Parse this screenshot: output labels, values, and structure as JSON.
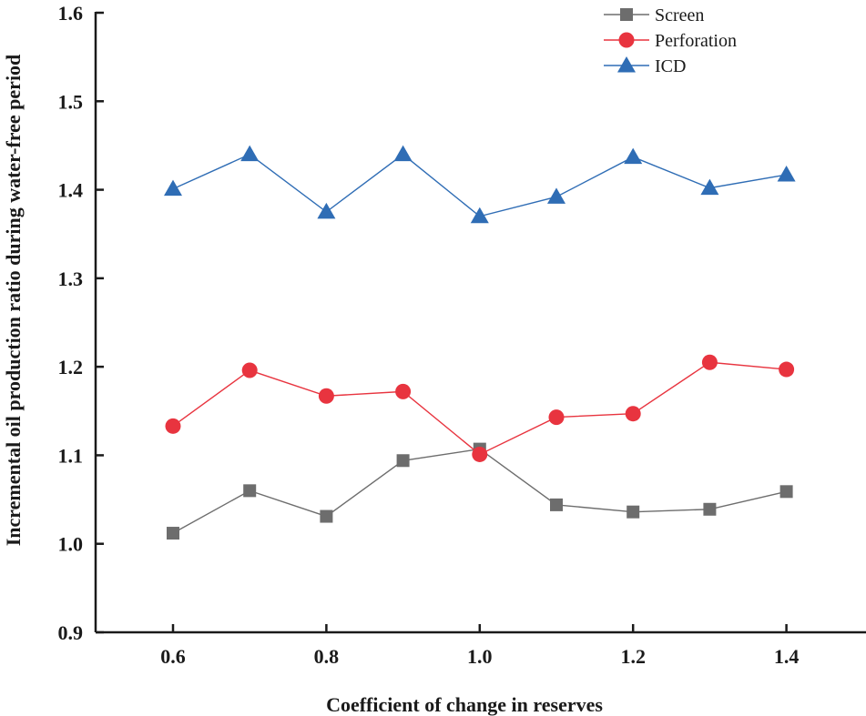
{
  "chart_data": {
    "type": "line",
    "title": "",
    "xlabel": "Coefficient of change in reserves",
    "ylabel": "Incremental oil production ratio during water-free period",
    "xlim": [
      0.5,
      1.5
    ],
    "ylim": [
      0.9,
      1.6
    ],
    "xticks": [
      0.6,
      0.8,
      1.0,
      1.2,
      1.4
    ],
    "xtick_labels": [
      "0.6",
      "0.8",
      "1.0",
      "1.2",
      "1.4"
    ],
    "yticks": [
      0.9,
      1.0,
      1.1,
      1.2,
      1.3,
      1.4,
      1.5,
      1.6
    ],
    "ytick_labels": [
      "0.9",
      "1.0",
      "1.1",
      "1.2",
      "1.3",
      "1.4",
      "1.5",
      "1.6"
    ],
    "x": [
      0.6,
      0.7,
      0.8,
      0.9,
      1.0,
      1.1,
      1.2,
      1.3,
      1.4
    ],
    "grid": false,
    "legend": "top-right",
    "series": [
      {
        "name": "Screen",
        "marker": "square",
        "color": "#6d6d6d",
        "values": [
          1.012,
          1.06,
          1.031,
          1.094,
          1.107,
          1.044,
          1.036,
          1.039,
          1.059
        ]
      },
      {
        "name": "Perforation",
        "marker": "circle",
        "color": "#e8343f",
        "values": [
          1.133,
          1.196,
          1.167,
          1.172,
          1.101,
          1.143,
          1.147,
          1.205,
          1.197
        ]
      },
      {
        "name": "ICD",
        "marker": "triangle",
        "color": "#2f6db5",
        "values": [
          1.401,
          1.44,
          1.375,
          1.44,
          1.37,
          1.392,
          1.437,
          1.402,
          1.417
        ]
      }
    ]
  }
}
